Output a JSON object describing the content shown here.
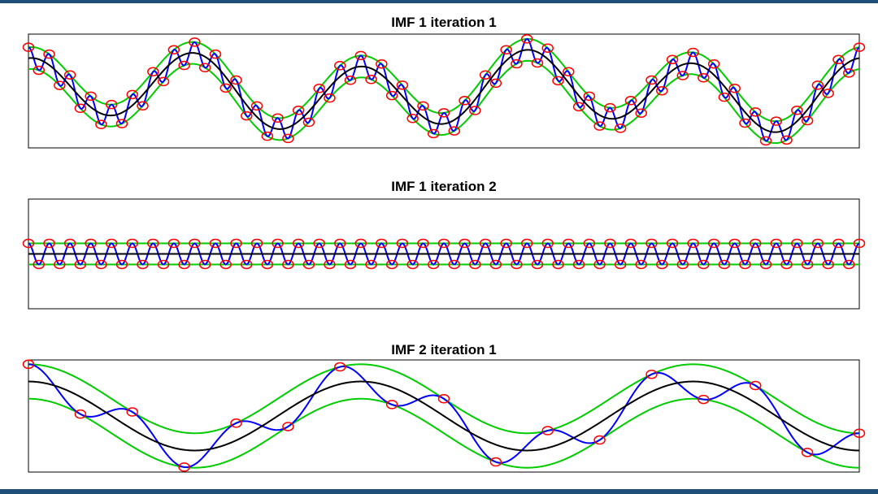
{
  "colors": {
    "frame": "#1f4e79",
    "signal": "#0000ff",
    "envelope": "#00cc00",
    "mean": "#000000",
    "extrema_marker": "#ff0000",
    "axes_box": "#000000"
  },
  "chart_data": [
    {
      "type": "line",
      "title": "IMF 1 iteration 1",
      "xlabel": "",
      "ylabel": "",
      "grid": false,
      "xlim": [
        0,
        1
      ],
      "ylim": [
        -2.6,
        2.6
      ],
      "components": {
        "signal": {
          "freq_cycles": 40,
          "amp": 0.5
        },
        "mean": [
          {
            "amp": 1.5,
            "freq_cycles": 5,
            "phase": 1.5708
          },
          {
            "amp": 0.4,
            "freq_cycles": 2,
            "phase": 0
          }
        ],
        "envelope_halfwidth": 0.5,
        "marker_every_extremum": true
      },
      "series": [
        {
          "role": "signal",
          "line_color": "#0000ff"
        },
        {
          "role": "upper_envelope",
          "line_color": "#00cc00"
        },
        {
          "role": "lower_envelope",
          "line_color": "#00cc00"
        },
        {
          "role": "mean_envelope",
          "line_color": "#000000"
        }
      ]
    },
    {
      "type": "line",
      "title": "IMF 1 iteration 2",
      "xlabel": "",
      "ylabel": "",
      "grid": false,
      "xlim": [
        0,
        1
      ],
      "ylim": [
        -2.6,
        2.6
      ],
      "components": {
        "signal": {
          "freq_cycles": 40,
          "amp": 0.5
        },
        "mean": [],
        "envelope_halfwidth": 0.5,
        "marker_every_extremum": true
      },
      "series": [
        {
          "role": "signal",
          "line_color": "#0000ff"
        },
        {
          "role": "upper_envelope",
          "line_color": "#00cc00"
        },
        {
          "role": "lower_envelope",
          "line_color": "#00cc00"
        },
        {
          "role": "mean_envelope",
          "line_color": "#000000"
        }
      ]
    },
    {
      "type": "line",
      "title": "IMF 2 iteration 1",
      "xlabel": "",
      "ylabel": "",
      "grid": false,
      "xlim": [
        0,
        1
      ],
      "ylim": [
        -2.6,
        2.6
      ],
      "components": {
        "signal": {
          "freq_cycles": 8,
          "amp": 0.8
        },
        "mean": [
          {
            "amp": 1.6,
            "freq_cycles": 2.5,
            "phase": 1.5708
          }
        ],
        "envelope_halfwidth": 0.8,
        "marker_every_extremum": true
      },
      "series": [
        {
          "role": "signal",
          "line_color": "#0000ff"
        },
        {
          "role": "upper_envelope",
          "line_color": "#00cc00"
        },
        {
          "role": "lower_envelope",
          "line_color": "#00cc00"
        },
        {
          "role": "mean_envelope",
          "line_color": "#000000"
        }
      ]
    }
  ]
}
